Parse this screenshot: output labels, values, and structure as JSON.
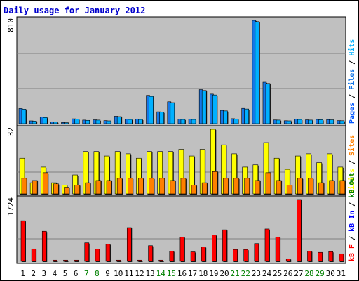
{
  "chart_data": [
    {
      "type": "bar",
      "title": "Daily usage for January 2012",
      "ytick_max_label": "810",
      "legend": [
        "Pages",
        "Files",
        "Hits"
      ],
      "colors": {
        "Pages": "#0055ff",
        "Files": "#1577e8",
        "Hits": "#00b0ff"
      },
      "ylim": [
        0,
        810
      ],
      "categories": [
        "1",
        "2",
        "3",
        "4",
        "5",
        "6",
        "7",
        "8",
        "9",
        "10",
        "11",
        "12",
        "13",
        "14",
        "15",
        "16",
        "17",
        "18",
        "19",
        "20",
        "21",
        "22",
        "23",
        "24",
        "25",
        "26",
        "27",
        "28",
        "29",
        "30",
        "31"
      ],
      "weekend_days": [
        "7",
        "8",
        "14",
        "15",
        "21",
        "22",
        "28",
        "29"
      ],
      "series": [
        {
          "name": "Files",
          "values": [
            119,
            22,
            52,
            13,
            9,
            38,
            28,
            30,
            24,
            58,
            35,
            35,
            222,
            93,
            172,
            35,
            35,
            267,
            232,
            104,
            39,
            120,
            810,
            325,
            29,
            23,
            35,
            30,
            33,
            32,
            24
          ]
        },
        {
          "name": "Hits",
          "values": [
            114,
            20,
            48,
            12,
            8,
            36,
            26,
            28,
            22,
            55,
            33,
            33,
            214,
            90,
            165,
            33,
            33,
            260,
            225,
            100,
            37,
            115,
            800,
            315,
            28,
            22,
            33,
            28,
            31,
            30,
            23
          ]
        }
      ]
    },
    {
      "type": "bar",
      "ytick_max_label": "32",
      "legend": [
        "Visits",
        "Sites"
      ],
      "colors": {
        "Visits": "#ffff00",
        "Sites": "#ff8000"
      },
      "ylim": [
        0,
        32
      ],
      "categories": [
        "1",
        "2",
        "3",
        "4",
        "5",
        "6",
        "7",
        "8",
        "9",
        "10",
        "11",
        "12",
        "13",
        "14",
        "15",
        "16",
        "17",
        "18",
        "19",
        "20",
        "21",
        "22",
        "23",
        "24",
        "25",
        "26",
        "27",
        "28",
        "29",
        "30",
        "31"
      ],
      "series": [
        {
          "name": "Visits",
          "values": [
            16,
            5,
            12,
            5,
            4,
            8.5,
            19,
            19,
            17,
            19,
            18,
            16,
            19,
            19,
            19,
            20,
            17,
            20,
            29,
            22,
            18,
            12,
            13,
            23,
            16,
            11,
            17,
            18,
            14,
            18,
            12
          ]
        },
        {
          "name": "Sites",
          "values": [
            7,
            6,
            9.5,
            4.5,
            3,
            4,
            5,
            6,
            6,
            7,
            7,
            7,
            7,
            7,
            6,
            7,
            4,
            5,
            10,
            7,
            7,
            7,
            6,
            9.5,
            6,
            4,
            7,
            7,
            5,
            6,
            6
          ]
        }
      ]
    },
    {
      "type": "bar",
      "ytick_max_label": "1724",
      "legend": [
        "kB F",
        "kB In",
        "kB Out"
      ],
      "colors": {
        "kB F": "#ff0000",
        "kB In": "#0000ff",
        "kB Out": "#008000"
      },
      "ylim": [
        0,
        1724
      ],
      "categories": [
        "1",
        "2",
        "3",
        "4",
        "5",
        "6",
        "7",
        "8",
        "9",
        "10",
        "11",
        "12",
        "13",
        "14",
        "15",
        "16",
        "17",
        "18",
        "19",
        "20",
        "21",
        "22",
        "23",
        "24",
        "25",
        "26",
        "27",
        "28",
        "29",
        "30",
        "31"
      ],
      "series": [
        {
          "name": "kB F",
          "values": [
            1133,
            347,
            838,
            34,
            34,
            34,
            515,
            339,
            480,
            34,
            940,
            34,
            436,
            34,
            285,
            680,
            264,
            400,
            730,
            879,
            330,
            330,
            495,
            902,
            680,
            70,
            1724,
            285,
            250,
            270,
            210
          ]
        }
      ]
    }
  ]
}
